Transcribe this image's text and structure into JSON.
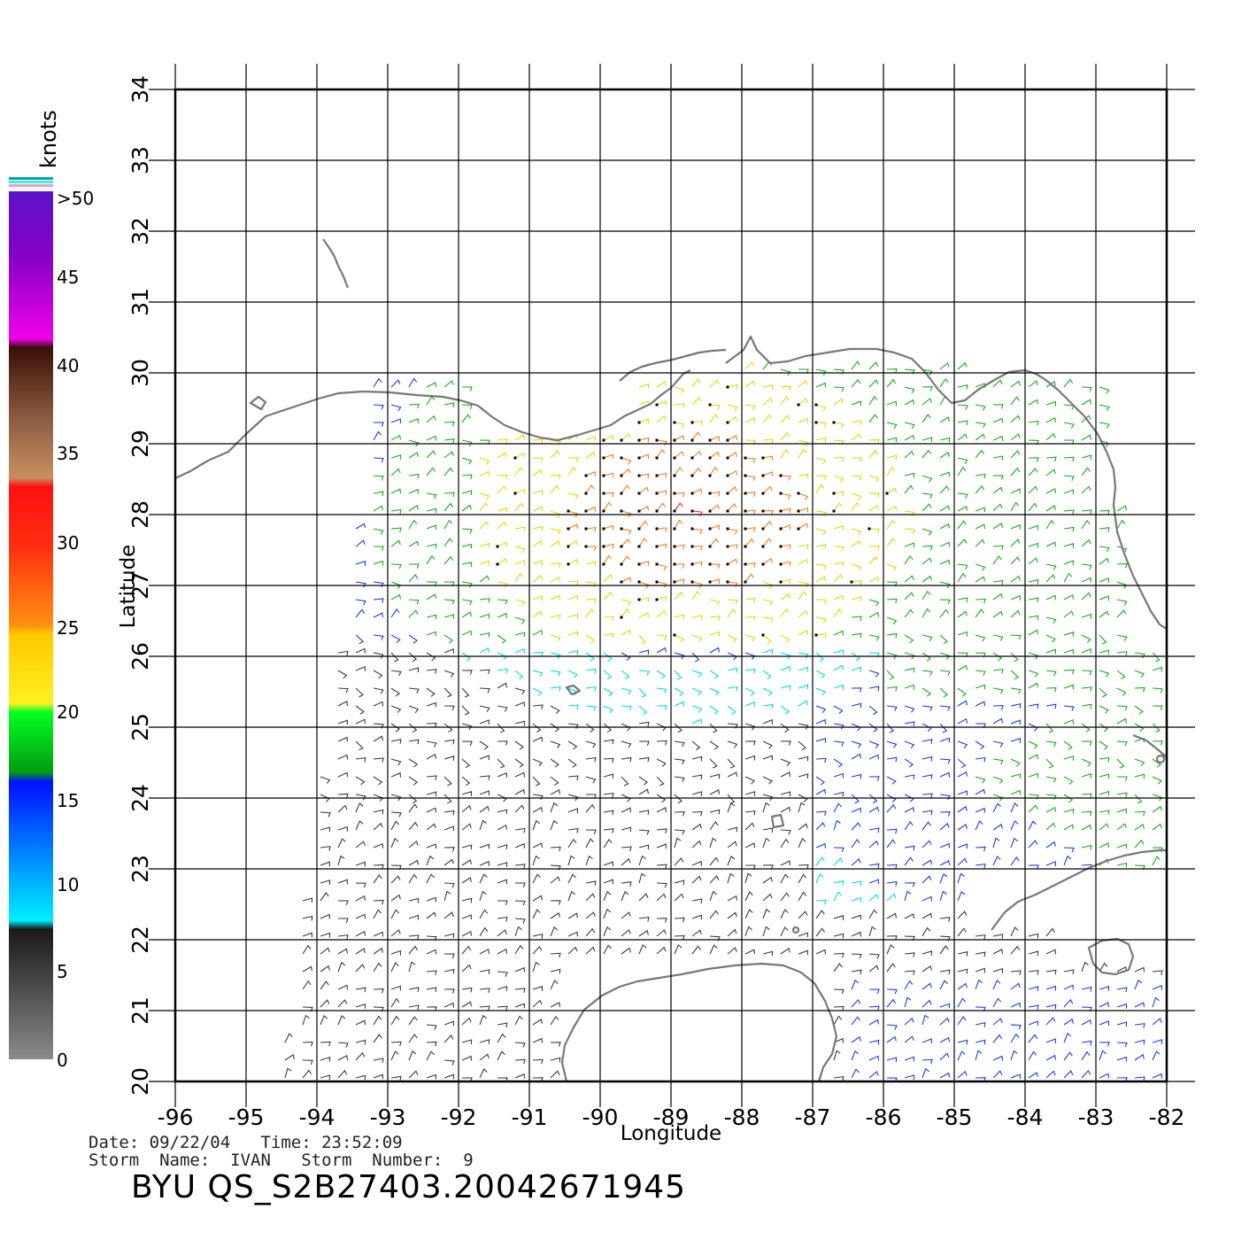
{
  "colorbar": {
    "title": "knots",
    "labels": [
      ">50",
      "45",
      "40",
      "35",
      "30",
      "25",
      "20",
      "15",
      "10",
      "5",
      "0"
    ]
  },
  "axes": {
    "xlabel": "Longitude",
    "ylabel": "Latitude",
    "x_ticks": [
      "-96",
      "-95",
      "-94",
      "-93",
      "-92",
      "-91",
      "-90",
      "-89",
      "-88",
      "-87",
      "-86",
      "-85",
      "-84",
      "-83",
      "-82"
    ],
    "y_ticks": [
      "20",
      "21",
      "22",
      "23",
      "24",
      "25",
      "26",
      "27",
      "28",
      "29",
      "30",
      "31",
      "32",
      "33",
      "34"
    ],
    "lon_range": [
      -96,
      -82
    ],
    "lat_range": [
      20,
      34
    ]
  },
  "info": {
    "date_line": "Date: 09/22/04   Time: 23:52:09",
    "storm_line": "Storm  Name:  IVAN   Storm  Number:  9",
    "file_id": "BYU  QS_S2B27403.20042671945"
  },
  "colors": {
    "coast": "#777777",
    "grid": "#000000",
    "speed_0_5": "#3a3a3a",
    "speed_5_10": "#00d8ee",
    "speed_10_15": "#1040e0",
    "speed_15_20": "#10b010",
    "speed_20_25": "#f0d000",
    "speed_25_30": "#ff7a10",
    "speed_30_35": "#ff2010"
  }
}
